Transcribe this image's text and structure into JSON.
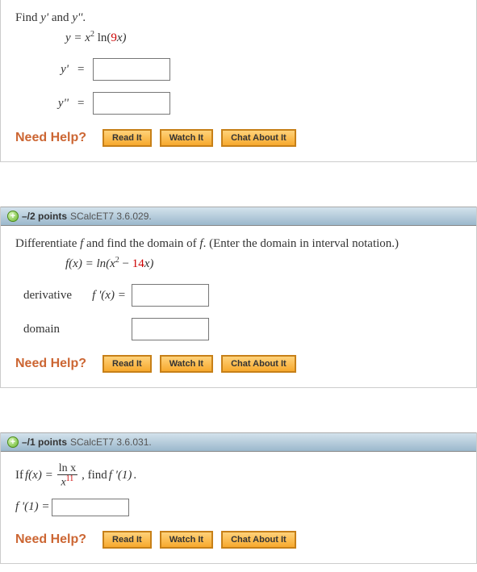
{
  "colors": {
    "accent": "#cc6633",
    "red": "#cc0000",
    "headerTop": "#d3e2ec",
    "headerBot": "#9bb8cc",
    "btnTop": "#ffd27a",
    "btnBot": "#f7a92e",
    "btnBorder": "#c78018"
  },
  "q1": {
    "prompt_a": "Find ",
    "prompt_y1": "y'",
    "prompt_and": " and ",
    "prompt_y2": "y''",
    "prompt_dot": ".",
    "formula_pre": "y = x",
    "formula_sup": "2",
    "formula_mid": " ln(",
    "formula_nine": "9",
    "formula_post": "x)",
    "row1_label": "y'",
    "row2_label": "y''",
    "eq": "=",
    "help": "Need Help?",
    "buttons": {
      "read": "Read It",
      "watch": "Watch It",
      "chat": "Chat About It"
    }
  },
  "q2": {
    "points_pre": "–/2 points",
    "source": "SCalcET7 3.6.029.",
    "prompt_a": "Differentiate ",
    "prompt_f1": "f",
    "prompt_b": " and find the domain of ",
    "prompt_f2": "f",
    "prompt_c": ". (Enter the domain in interval notation.)",
    "formula_pre": "f(x) = ln(x",
    "formula_sup": "2",
    "formula_mid": " − ",
    "formula_fourteen": "14",
    "formula_post": "x)",
    "row1_label": "derivative",
    "row1_fx": "f '(x) =",
    "row2_label": "domain",
    "help": "Need Help?",
    "buttons": {
      "read": "Read It",
      "watch": "Watch It",
      "chat": "Chat About It"
    }
  },
  "q3": {
    "points_pre": "–/1 points",
    "source": "SCalcET7 3.6.031.",
    "if": "If  ",
    "fx": "f(x) = ",
    "frac_num": "ln x",
    "frac_den_pre": "x",
    "frac_den_sup": "11",
    "post": ", find ",
    "f1": "f '(1)",
    "dot": ".",
    "f1eq": "f '(1) = ",
    "help": "Need Help?",
    "buttons": {
      "read": "Read It",
      "watch": "Watch It",
      "chat": "Chat About It"
    }
  }
}
